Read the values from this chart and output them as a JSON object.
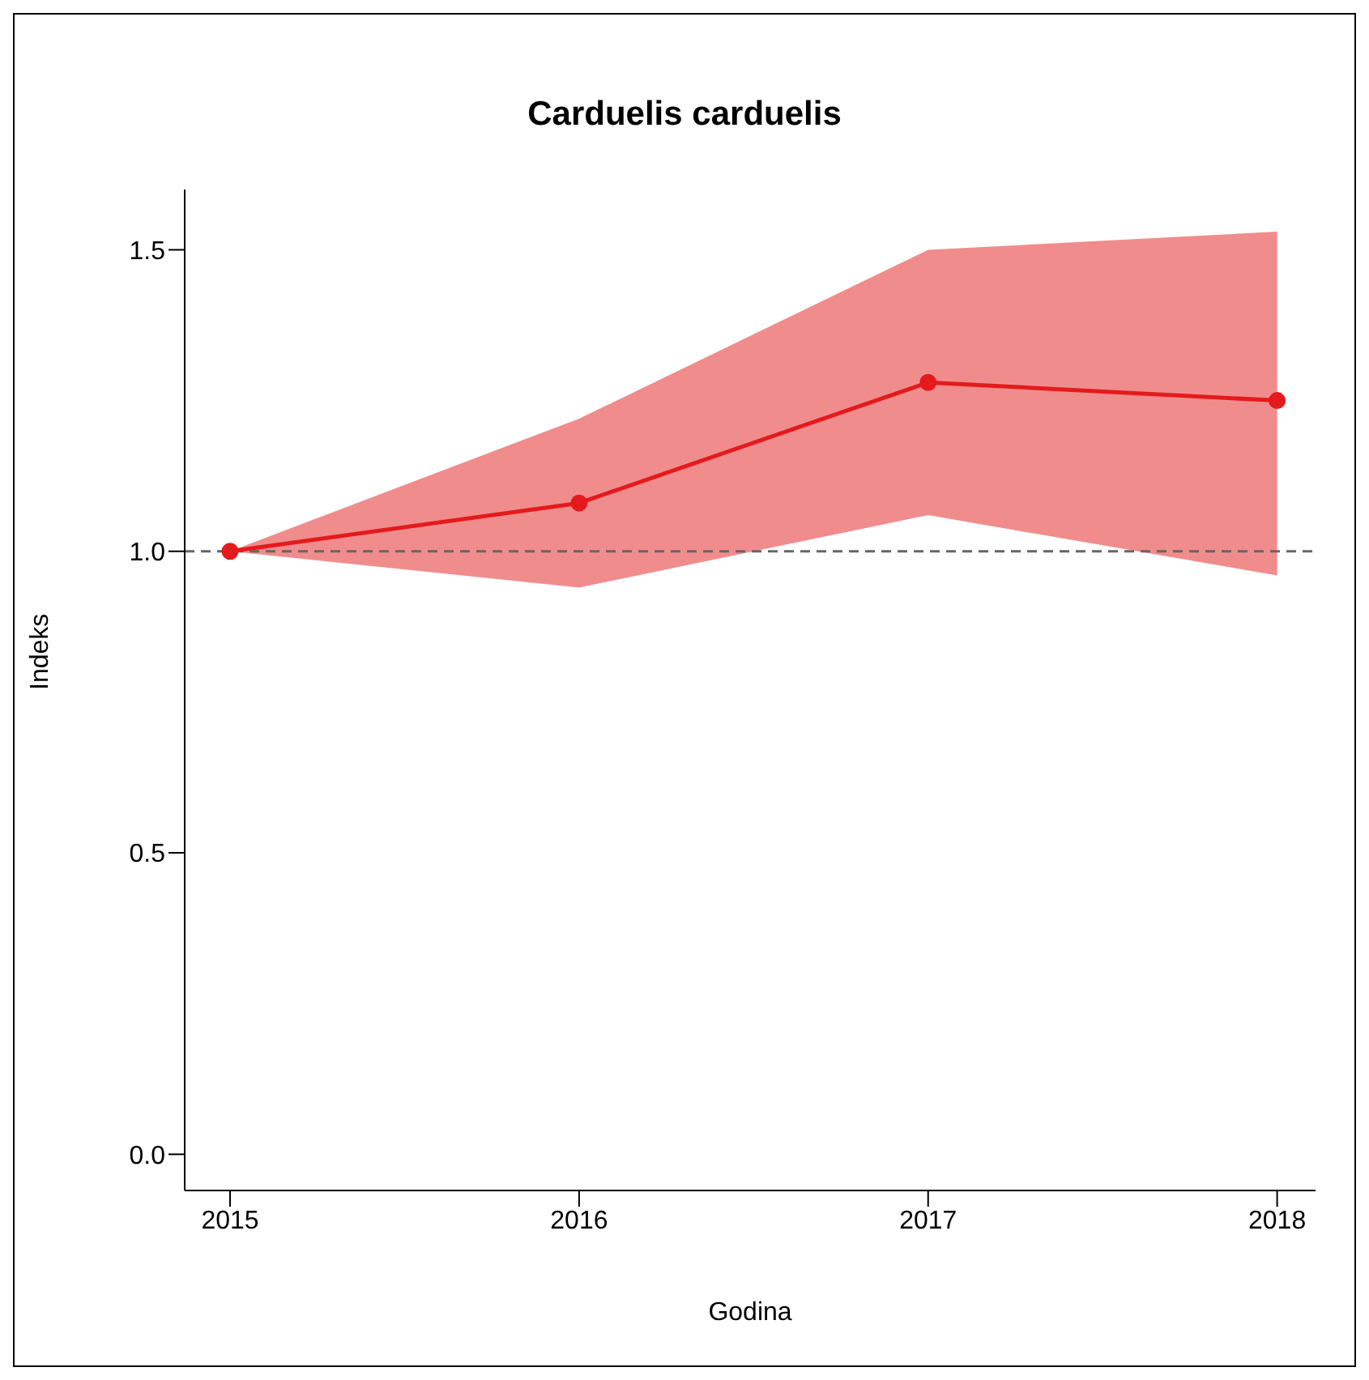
{
  "chart_data": {
    "type": "line",
    "title": "Carduelis carduelis",
    "xlabel": "Godina",
    "ylabel": "Indeks",
    "x": [
      2015,
      2016,
      2017,
      2018
    ],
    "series": [
      {
        "color": "#e41a1c",
        "values": [
          1.0,
          1.08,
          1.28,
          1.25
        ],
        "lower": [
          1.0,
          0.94,
          1.06,
          0.96
        ],
        "upper": [
          1.0,
          1.22,
          1.5,
          1.53
        ]
      }
    ],
    "xlim": [
      2014.87,
      2018.11
    ],
    "xticks": [
      2015,
      2016,
      2017,
      2018
    ],
    "ylim": [
      -0.06,
      1.6
    ],
    "yticks": [
      {
        "value": 0,
        "label": "0.0"
      },
      0.5,
      {
        "value": 1,
        "label": "1.0"
      },
      1.5
    ],
    "ref_lines": [
      {
        "axis": "y",
        "value": 1,
        "color": "#666666",
        "line_style": "dashed"
      }
    ],
    "grid": false,
    "legend": false,
    "marker": "circle",
    "line_style": "solid"
  }
}
